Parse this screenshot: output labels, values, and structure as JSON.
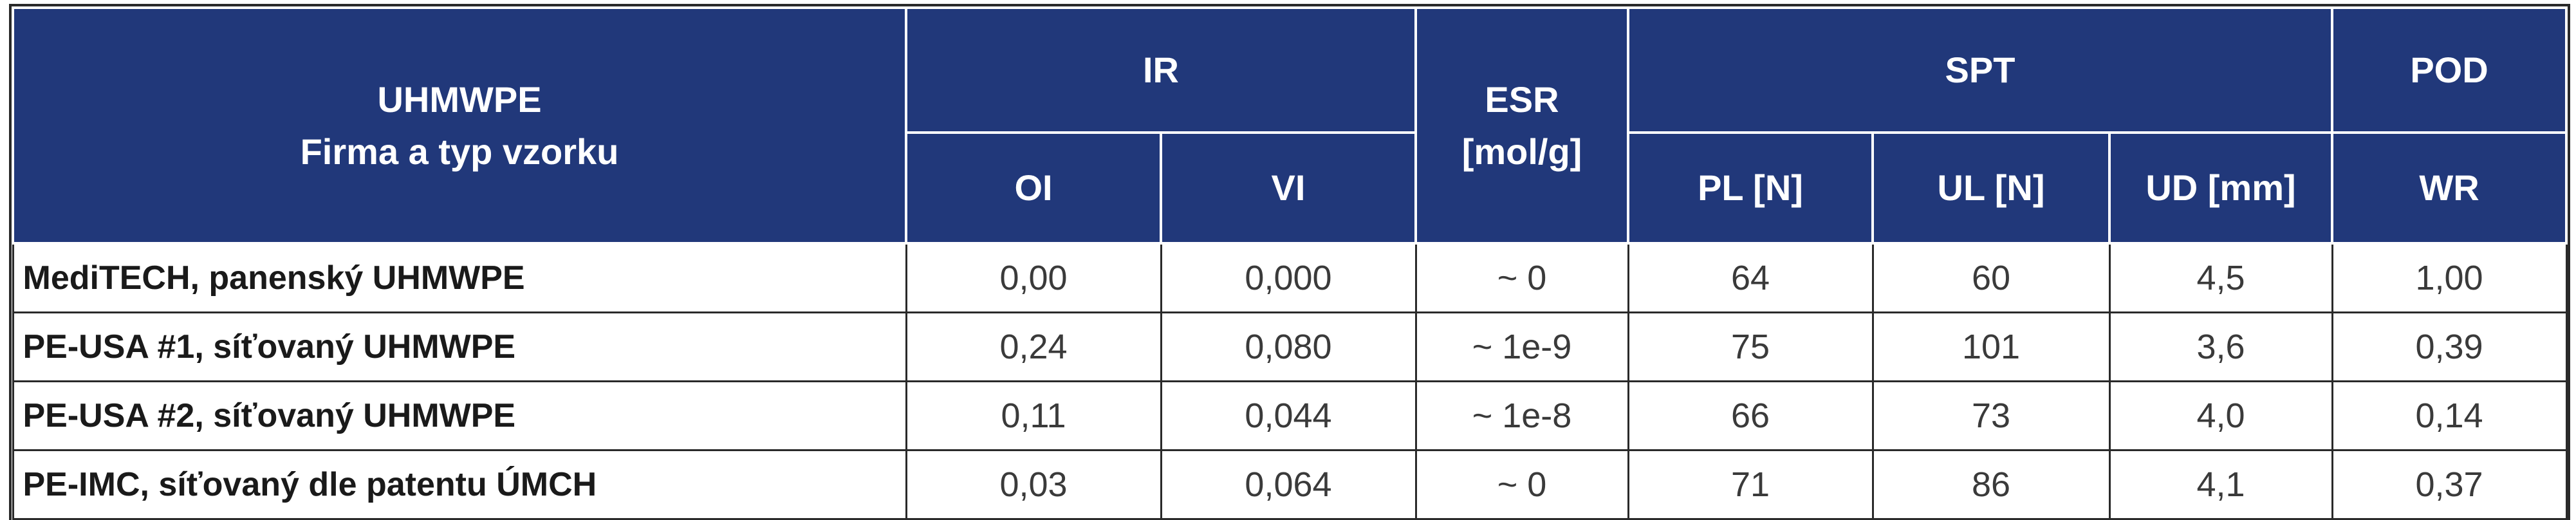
{
  "header": {
    "sample_title_line1": "UHMWPE",
    "sample_title_line2": "Firma a typ vzorku",
    "group_ir": "IR",
    "group_esr_line1": "ESR",
    "group_esr_line2": "[mol/g]",
    "group_spt": "SPT",
    "group_pod": "POD",
    "col_oi": "OI",
    "col_vi": "VI",
    "col_pl": "PL [N]",
    "col_ul": "UL [N]",
    "col_ud": "UD [mm]",
    "col_wr": "WR"
  },
  "rows": [
    {
      "name": "MediTECH, panenský UHMWPE",
      "oi": "0,00",
      "vi": "0,000",
      "esr": "~ 0",
      "pl": "64",
      "ul": "60",
      "ud": "4,5",
      "wr": "1,00"
    },
    {
      "name": "PE-USA #1, síťovaný UHMWPE",
      "oi": "0,24",
      "vi": "0,080",
      "esr": "~ 1e-9",
      "pl": "75",
      "ul": "101",
      "ud": "3,6",
      "wr": "0,39"
    },
    {
      "name": "PE-USA #2, síťovaný UHMWPE",
      "oi": "0,11",
      "vi": "0,044",
      "esr": "~ 1e-8",
      "pl": "66",
      "ul": "73",
      "ud": "4,0",
      "wr": "0,14"
    },
    {
      "name": "PE-IMC, síťovaný dle patentu ÚMCH",
      "oi": "0,03",
      "vi": "0,064",
      "esr": "~ 0",
      "pl": "71",
      "ul": "86",
      "ud": "4,1",
      "wr": "0,37"
    }
  ],
  "colors": {
    "header_bg": "#21387a",
    "header_text": "#ffffff",
    "border": "#2a2a2a"
  }
}
